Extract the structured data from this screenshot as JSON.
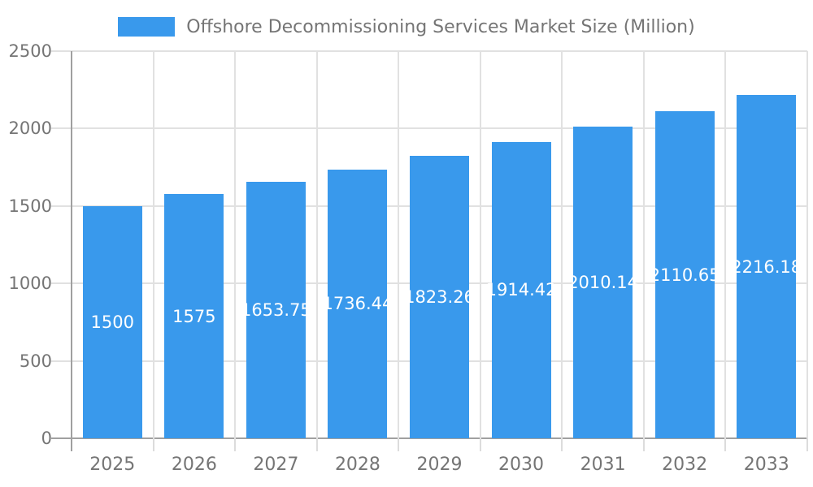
{
  "chart_data": {
    "type": "bar",
    "title": "Offshore Decommissioning Services Market Size (Million)",
    "legend_label": "Offshore Decommissioning Services Market Size (Million)",
    "legend_position": "top",
    "categories": [
      "2025",
      "2026",
      "2027",
      "2028",
      "2029",
      "2030",
      "2031",
      "2032",
      "2033"
    ],
    "values": [
      1500,
      1575,
      1653.75,
      1736.44,
      1823.26,
      1914.42,
      2010.14,
      2110.65,
      2216.18
    ],
    "xlabel": "",
    "ylabel": "",
    "ylim": [
      0,
      2500
    ],
    "yticks": [
      0,
      500,
      1000,
      1500,
      2000,
      2500
    ],
    "grid": true,
    "data_labels_inside_bars": true,
    "colors": {
      "bar": "#3999ec",
      "bar_value_label": "#ffffff",
      "axis_line": "#a0a0a0",
      "gridline": "#e1e1e1",
      "minor_tick": "#dcdcdc",
      "tick_text": "#757575",
      "background": "#ffffff"
    }
  }
}
